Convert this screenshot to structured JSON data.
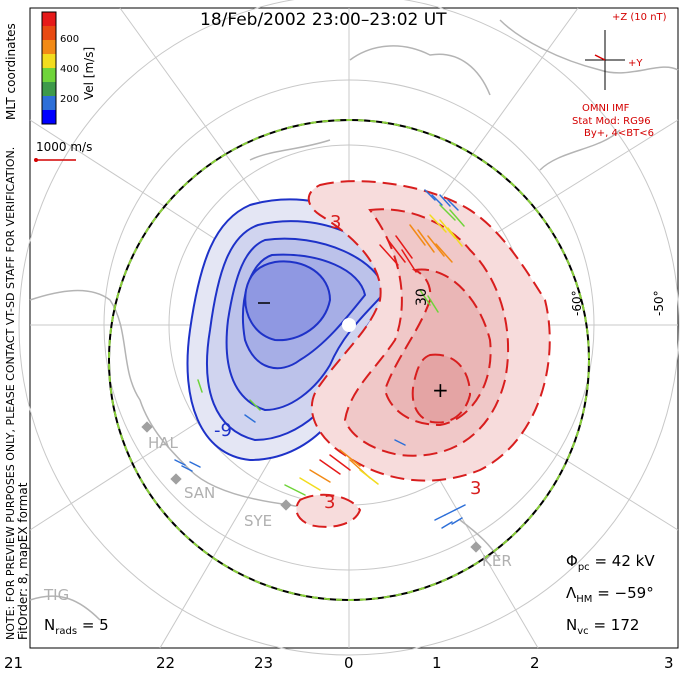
{
  "title": "18/Feb/2002 23:00–23:02 UT",
  "colorbar": {
    "label": "Vel [m/s]",
    "ticks": [
      "600",
      "400",
      "200"
    ],
    "colors": [
      "#0000ff",
      "#2d6fd8",
      "#3d9a4a",
      "#6fd43a",
      "#f2dc1e",
      "#f28a16",
      "#e84a12",
      "#e61a1a"
    ]
  },
  "coord_label": "MLT coordinates",
  "scale_label": "1000 m/s",
  "note": "NOTE: FOR PREVIEW PURPOSES ONLY, PLEASE CONTACT VT-SD STAFF FOR VERIFICATION.",
  "fit_label": "FitOrder: 8, mapEX format",
  "imf": {
    "z_label": "+Z (10 nT)",
    "y_label": "+Y",
    "source": "OMNI IMF",
    "model": "Stat Mod: RG96",
    "condition": "By+, 4<BT<6"
  },
  "contour_labels": {
    "neg": "-9",
    "pos1": "3",
    "pos2": "3",
    "pos3": "3",
    "ten": "30"
  },
  "minus_marker": "−",
  "plus_marker": "+",
  "lat_labels": [
    "-60°",
    "-50°"
  ],
  "stations": [
    "HAL",
    "SAN",
    "SYE",
    "KER",
    "TIG"
  ],
  "stats": {
    "phi_symbol": "Φ",
    "phi_sub": "pc",
    "phi_value": "= 42 kV",
    "lambda_symbol": "Λ",
    "lambda_sub": "HM",
    "lambda_value": "= −59°",
    "nvc_symbol": "N",
    "nvc_sub": "vc",
    "nvc_value": "= 172",
    "nrads_symbol": "N",
    "nrads_sub": "rads",
    "nrads_value": "= 5"
  },
  "mlt_ticks": [
    "21",
    "22",
    "23",
    "0",
    "1",
    "2",
    "3"
  ]
}
